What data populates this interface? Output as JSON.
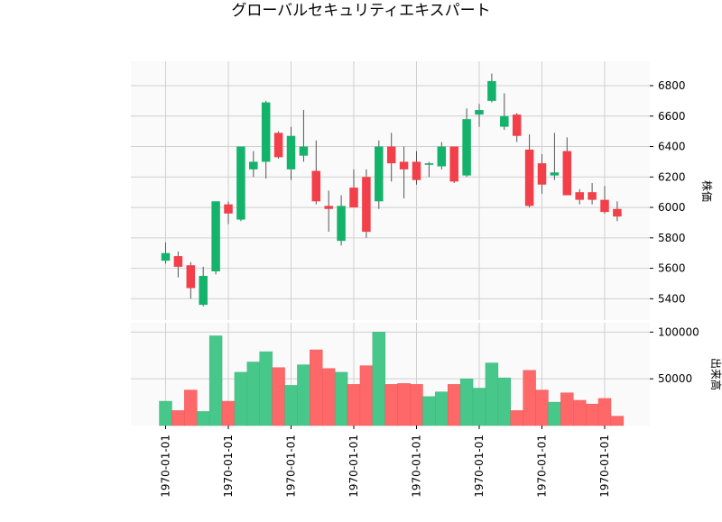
{
  "chart_data": {
    "type": "candlestick",
    "title": "グローバルセキュリティエキスパート",
    "x_tick_labels": [
      "1970-01-01",
      "1970-01-01",
      "1970-01-01",
      "1970-01-01",
      "1970-01-01",
      "1970-01-01",
      "1970-01-01",
      "1970-01-01"
    ],
    "price_panel": {
      "ylabel": "株価",
      "ylim": [
        5260,
        6960
      ],
      "yticks": [
        5400,
        5600,
        5800,
        6000,
        6200,
        6400,
        6600,
        6800
      ],
      "grid": true
    },
    "volume_panel": {
      "ylabel": "出来高",
      "ylim": [
        0,
        110000
      ],
      "yticks": [
        50000,
        100000
      ],
      "ytick_labels": [
        "50000",
        "100000"
      ],
      "grid": true
    },
    "colors": {
      "up": "#13b36b",
      "down": "#f23f49",
      "up_volume": "#48c78b",
      "down_volume": "#ff6868",
      "wick": "#555555"
    },
    "candles": [
      {
        "open": 5650,
        "high": 5770,
        "low": 5630,
        "close": 5700,
        "volume": 26000
      },
      {
        "open": 5680,
        "high": 5710,
        "low": 5540,
        "close": 5610,
        "volume": 16000
      },
      {
        "open": 5620,
        "high": 5640,
        "low": 5400,
        "close": 5470,
        "volume": 38000
      },
      {
        "open": 5360,
        "high": 5610,
        "low": 5350,
        "close": 5550,
        "volume": 15000
      },
      {
        "open": 5580,
        "high": 6040,
        "low": 5560,
        "close": 6040,
        "volume": 96000
      },
      {
        "open": 6020,
        "high": 6040,
        "low": 5890,
        "close": 5960,
        "volume": 26000
      },
      {
        "open": 5920,
        "high": 6400,
        "low": 5910,
        "close": 6400,
        "volume": 57000
      },
      {
        "open": 6250,
        "high": 6370,
        "low": 6200,
        "close": 6300,
        "volume": 68000
      },
      {
        "open": 6300,
        "high": 6700,
        "low": 6190,
        "close": 6690,
        "volume": 79000
      },
      {
        "open": 6490,
        "high": 6500,
        "low": 6320,
        "close": 6330,
        "volume": 62000
      },
      {
        "open": 6250,
        "high": 6530,
        "low": 6180,
        "close": 6470,
        "volume": 43000
      },
      {
        "open": 6340,
        "high": 6640,
        "low": 6300,
        "close": 6400,
        "volume": 65000
      },
      {
        "open": 6240,
        "high": 6440,
        "low": 6020,
        "close": 6040,
        "volume": 81000
      },
      {
        "open": 6010,
        "high": 6110,
        "low": 5840,
        "close": 5990,
        "volume": 61000
      },
      {
        "open": 5780,
        "high": 6080,
        "low": 5750,
        "close": 6010,
        "volume": 57000
      },
      {
        "open": 6130,
        "high": 6250,
        "low": 6000,
        "close": 6000,
        "volume": 44000
      },
      {
        "open": 6200,
        "high": 6250,
        "low": 5800,
        "close": 5840,
        "volume": 64000
      },
      {
        "open": 6040,
        "high": 6440,
        "low": 5990,
        "close": 6400,
        "volume": 100000
      },
      {
        "open": 6400,
        "high": 6490,
        "low": 6170,
        "close": 6290,
        "volume": 44000
      },
      {
        "open": 6300,
        "high": 6400,
        "low": 6060,
        "close": 6250,
        "volume": 45000
      },
      {
        "open": 6300,
        "high": 6370,
        "low": 6150,
        "close": 6180,
        "volume": 44000
      },
      {
        "open": 6280,
        "high": 6300,
        "low": 6200,
        "close": 6290,
        "volume": 31000
      },
      {
        "open": 6270,
        "high": 6430,
        "low": 6250,
        "close": 6400,
        "volume": 36000
      },
      {
        "open": 6400,
        "high": 6400,
        "low": 6160,
        "close": 6170,
        "volume": 44000
      },
      {
        "open": 6210,
        "high": 6650,
        "low": 6200,
        "close": 6580,
        "volume": 50000
      },
      {
        "open": 6610,
        "high": 6680,
        "low": 6530,
        "close": 6640,
        "volume": 40000
      },
      {
        "open": 6700,
        "high": 6880,
        "low": 6690,
        "close": 6830,
        "volume": 67000
      },
      {
        "open": 6530,
        "high": 6750,
        "low": 6510,
        "close": 6600,
        "volume": 51000
      },
      {
        "open": 6610,
        "high": 6620,
        "low": 6430,
        "close": 6470,
        "volume": 16000
      },
      {
        "open": 6380,
        "high": 6480,
        "low": 6000,
        "close": 6010,
        "volume": 59000
      },
      {
        "open": 6290,
        "high": 6350,
        "low": 6090,
        "close": 6150,
        "volume": 38000
      },
      {
        "open": 6210,
        "high": 6490,
        "low": 6180,
        "close": 6230,
        "volume": 25000
      },
      {
        "open": 6370,
        "high": 6460,
        "low": 6080,
        "close": 6080,
        "volume": 35000
      },
      {
        "open": 6100,
        "high": 6120,
        "low": 6020,
        "close": 6050,
        "volume": 27000
      },
      {
        "open": 6100,
        "high": 6160,
        "low": 6020,
        "close": 6050,
        "volume": 23000
      },
      {
        "open": 6050,
        "high": 6140,
        "low": 5960,
        "close": 5970,
        "volume": 29000
      },
      {
        "open": 5990,
        "high": 6040,
        "low": 5910,
        "close": 5940,
        "volume": 10000
      }
    ]
  }
}
